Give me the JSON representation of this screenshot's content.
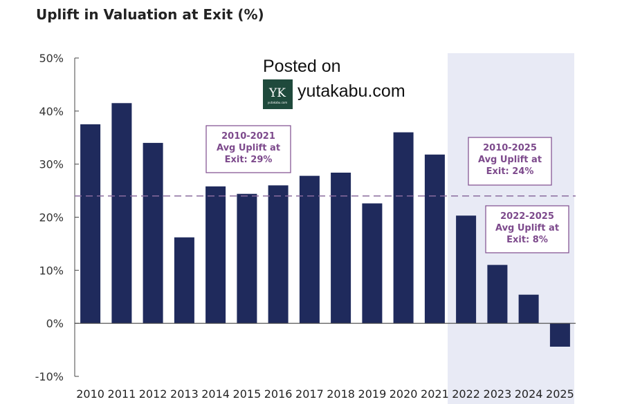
{
  "chart_data": {
    "type": "bar",
    "title": "Uplift in Valuation at Exit (%)",
    "xlabel": "",
    "ylabel": "",
    "categories": [
      "2010",
      "2011",
      "2012",
      "2013",
      "2014",
      "2015",
      "2016",
      "2017",
      "2018",
      "2019",
      "2020",
      "2021",
      "2022",
      "2023",
      "2024",
      "2025"
    ],
    "values": [
      37.5,
      41.5,
      34,
      16.2,
      25.8,
      24.4,
      26,
      27.8,
      28.4,
      22.6,
      36,
      31.8,
      20.3,
      11,
      5.4,
      -4.4
    ],
    "ylim": [
      -10,
      50
    ],
    "yticks": [
      50,
      40,
      30,
      20,
      10,
      0,
      -10
    ],
    "ytick_labels": [
      "50%",
      "40%",
      "30%",
      "20%",
      "10%",
      "0%",
      "-10%"
    ],
    "reference_line": {
      "value": 24,
      "style": "dashed"
    },
    "highlight_range": [
      "2022",
      "2025"
    ],
    "annotations": [
      {
        "lines": [
          "2010-2021",
          "Avg Uplift at",
          "Exit: 29%"
        ]
      },
      {
        "lines": [
          "2010-2025",
          "Avg Uplift at",
          "Exit: 24%"
        ]
      },
      {
        "lines": [
          "2022-2025",
          "Avg Uplift at",
          "Exit: 8%"
        ]
      }
    ],
    "grid": false,
    "colors": {
      "bar": "#1f2a5c",
      "highlight": "#e8eaf5",
      "reference_line": "#8a6b9e",
      "annotation": "#7d4a8c",
      "axis": "#444444"
    }
  },
  "watermark": {
    "line1": "Posted on",
    "site": "yutakabu.com",
    "logo_text": "YK",
    "logo_small": "yutakabu.com",
    "logo_color": "#1f4a3c"
  }
}
